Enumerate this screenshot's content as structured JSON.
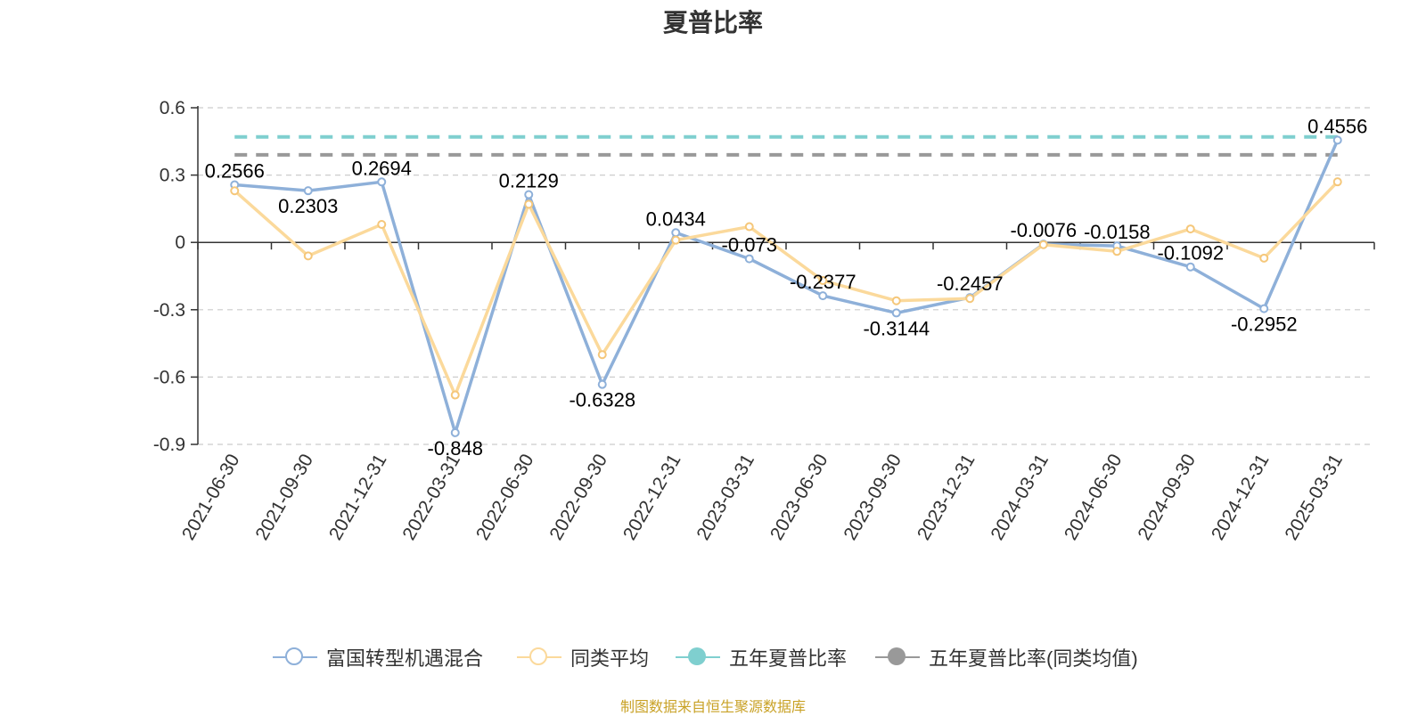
{
  "chart_data": {
    "type": "line",
    "title": "夏普比率",
    "xlabel": "",
    "ylabel": "",
    "categories": [
      "2021-06-30",
      "2021-09-30",
      "2021-12-31",
      "2022-03-31",
      "2022-06-30",
      "2022-09-30",
      "2022-12-31",
      "2023-03-31",
      "2023-06-30",
      "2023-09-30",
      "2023-12-31",
      "2024-03-31",
      "2024-06-30",
      "2024-09-30",
      "2024-12-31",
      "2025-03-31"
    ],
    "yticks": [
      "0.6",
      "0.3",
      "0",
      "-0.3",
      "-0.6",
      "-0.9"
    ],
    "ylim": [
      -0.9,
      0.6
    ],
    "grid": true,
    "legend_position": "bottom",
    "series": [
      {
        "name": "富国转型机遇混合",
        "color": "#8eb0d9",
        "values": [
          0.2566,
          0.2303,
          0.2694,
          -0.848,
          0.2129,
          -0.6328,
          0.0434,
          -0.073,
          -0.2377,
          -0.3144,
          -0.2457,
          -0.0076,
          -0.0158,
          -0.1092,
          -0.2952,
          0.4556
        ],
        "labels": [
          "0.2566",
          "0.2303",
          "0.2694",
          "-0.848",
          "0.2129",
          "-0.6328",
          "0.0434",
          "-0.073",
          "-0.2377",
          "-0.3144",
          "-0.2457",
          "-0.0076",
          "-0.0158",
          "-0.1092",
          "-0.2952",
          "0.4556"
        ]
      },
      {
        "name": "同类平均",
        "color": "#fbd99b",
        "values": [
          0.23,
          -0.06,
          0.08,
          -0.68,
          0.17,
          -0.5,
          0.01,
          0.07,
          -0.17,
          -0.26,
          -0.25,
          -0.01,
          -0.04,
          0.06,
          -0.07,
          0.27
        ]
      },
      {
        "name": "五年夏普比率",
        "color": "#7fcfcf",
        "value": 0.47,
        "style": "dashed"
      },
      {
        "name": "五年夏普比率(同类均值)",
        "color": "#999999",
        "value": 0.39,
        "style": "dashed"
      }
    ],
    "source": "制图数据来自恒生聚源数据库"
  }
}
